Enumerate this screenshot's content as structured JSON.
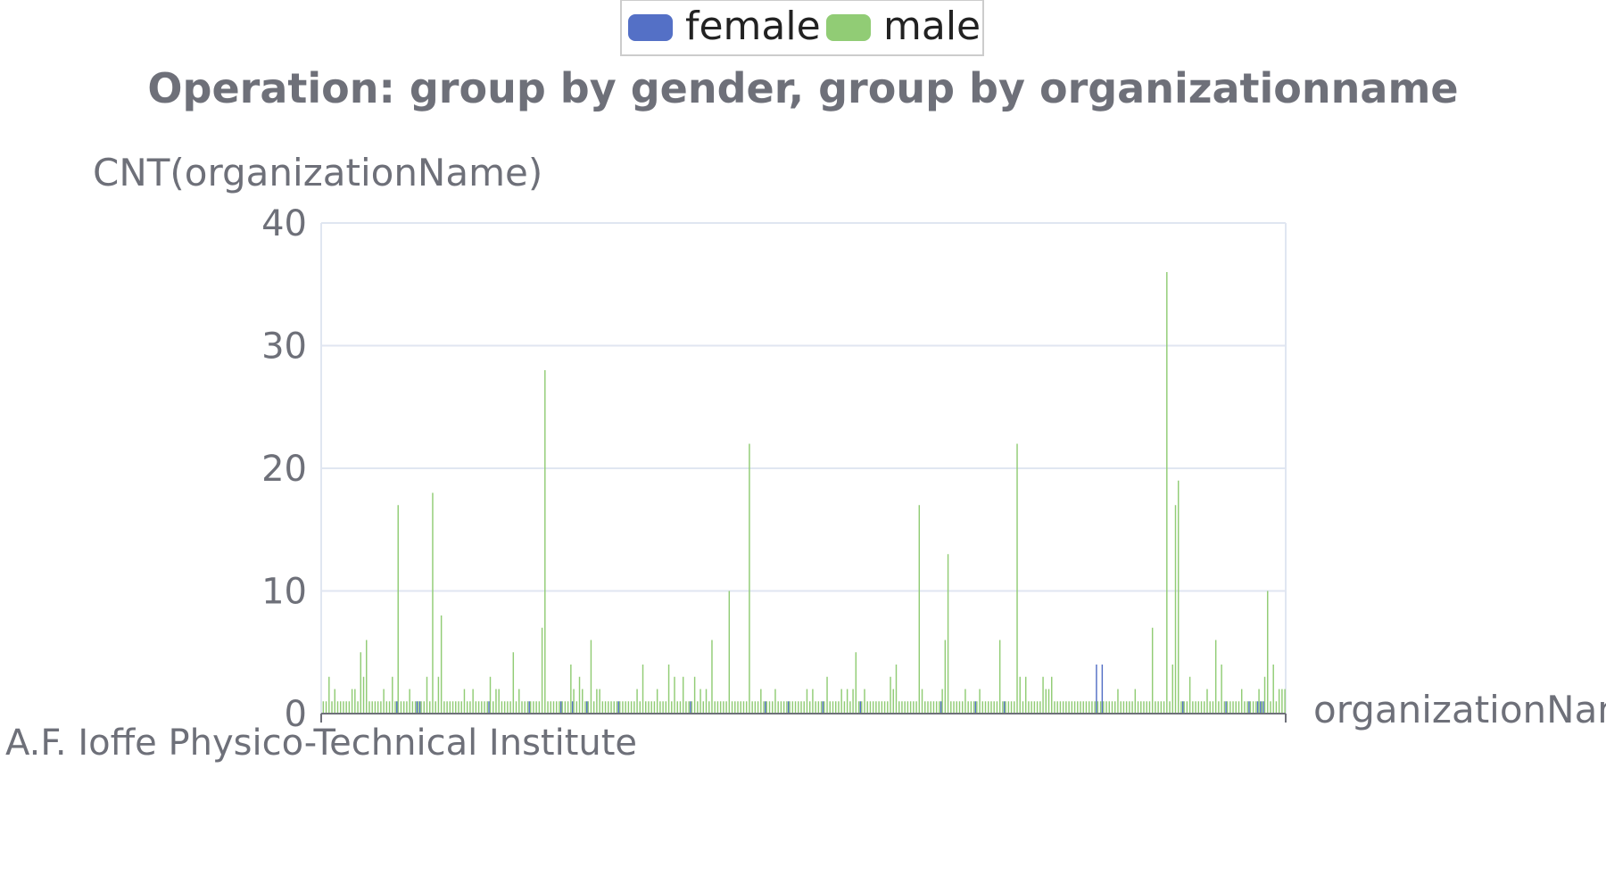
{
  "chart_data": {
    "type": "bar",
    "title": "Operation: group by gender, group by organizationname",
    "ylabel": "CNT(organizationName)",
    "xlabel": "organizationName",
    "ylim": [
      0,
      40
    ],
    "yticks": [
      "0",
      "10",
      "20",
      "30",
      "40"
    ],
    "x_tick_labels": [
      "A.F. Ioffe Physico-Technical Institute"
    ],
    "grid": true,
    "legend_position": "top-center",
    "series": [
      {
        "name": "female",
        "color": "#5470c6",
        "values": [
          0,
          0,
          0,
          0,
          0,
          0,
          0,
          0,
          0,
          0,
          0,
          0,
          0,
          0,
          0,
          0,
          0,
          0,
          0,
          0,
          0,
          0,
          0,
          0,
          0,
          0,
          1,
          0,
          0,
          0,
          0,
          0,
          0,
          1,
          1,
          0,
          0,
          0,
          0,
          0,
          0,
          0,
          0,
          0,
          0,
          0,
          0,
          0,
          0,
          0,
          0,
          0,
          0,
          0,
          0,
          0,
          0,
          0,
          1,
          0,
          0,
          0,
          0,
          0,
          0,
          0,
          0,
          0,
          0,
          0,
          0,
          0,
          1,
          0,
          0,
          0,
          0,
          0,
          0,
          0,
          0,
          0,
          0,
          1,
          0,
          0,
          0,
          1,
          0,
          0,
          0,
          0,
          1,
          0,
          0,
          0,
          0,
          0,
          0,
          0,
          0,
          0,
          0,
          1,
          0,
          0,
          0,
          0,
          0,
          0,
          0,
          0,
          0,
          0,
          0,
          0,
          0,
          0,
          0,
          0,
          0,
          0,
          0,
          0,
          0,
          0,
          0,
          0,
          1,
          0,
          0,
          0,
          0,
          0,
          0,
          0,
          0,
          0,
          0,
          0,
          0,
          0,
          0,
          0,
          0,
          0,
          0,
          0,
          0,
          0,
          0,
          0,
          0,
          0,
          1,
          0,
          0,
          0,
          0,
          0,
          0,
          0,
          1,
          0,
          0,
          0,
          0,
          0,
          0,
          0,
          0,
          0,
          0,
          0,
          1,
          0,
          0,
          0,
          0,
          0,
          0,
          0,
          0,
          0,
          0,
          0,
          0,
          1,
          0,
          0,
          0,
          0,
          0,
          0,
          0,
          0,
          0,
          0,
          0,
          0,
          0,
          0,
          0,
          0,
          0,
          0,
          0,
          0,
          0,
          0,
          0,
          0,
          0,
          0,
          0,
          1,
          0,
          0,
          0,
          0,
          0,
          0,
          0,
          0,
          0,
          0,
          0,
          1,
          0,
          0,
          0,
          0,
          0,
          0,
          0,
          0,
          0,
          1,
          0,
          0,
          0,
          0,
          0,
          0,
          0,
          0,
          0,
          0,
          0,
          0,
          0,
          0,
          0,
          0,
          0,
          0,
          0,
          0,
          0,
          0,
          0,
          0,
          0,
          0,
          0,
          0,
          0,
          0,
          0,
          4,
          0,
          4,
          0,
          0,
          0,
          0,
          0,
          0,
          0,
          0,
          0,
          0,
          0,
          0,
          0,
          0,
          0,
          0,
          0,
          0,
          0,
          0,
          0,
          0,
          0,
          0,
          0,
          0,
          0,
          1,
          0,
          0,
          0,
          0,
          0,
          0,
          0,
          0,
          0,
          0,
          0,
          0,
          0,
          0,
          1,
          0,
          0,
          0,
          0,
          0,
          0,
          0,
          1,
          0,
          0,
          1,
          1,
          1,
          0,
          0,
          0,
          0,
          0,
          0,
          0
        ]
      },
      {
        "name": "male",
        "color": "#91cc75",
        "values": [
          1,
          1,
          3,
          1,
          2,
          1,
          1,
          1,
          1,
          1,
          2,
          2,
          1,
          5,
          3,
          6,
          1,
          1,
          1,
          1,
          1,
          2,
          1,
          1,
          3,
          1,
          17,
          1,
          1,
          1,
          2,
          1,
          1,
          1,
          1,
          1,
          3,
          1,
          18,
          1,
          3,
          8,
          1,
          1,
          1,
          1,
          1,
          1,
          1,
          2,
          1,
          1,
          2,
          1,
          1,
          1,
          1,
          1,
          3,
          1,
          2,
          2,
          1,
          1,
          1,
          1,
          5,
          1,
          2,
          1,
          1,
          1,
          1,
          1,
          1,
          1,
          7,
          28,
          1,
          1,
          1,
          1,
          1,
          1,
          1,
          1,
          4,
          2,
          1,
          3,
          2,
          1,
          1,
          6,
          1,
          2,
          2,
          1,
          1,
          1,
          1,
          1,
          1,
          1,
          1,
          1,
          1,
          1,
          1,
          2,
          1,
          4,
          1,
          1,
          1,
          1,
          2,
          1,
          1,
          1,
          4,
          1,
          3,
          1,
          1,
          3,
          1,
          1,
          1,
          3,
          1,
          2,
          1,
          2,
          1,
          6,
          1,
          1,
          1,
          1,
          1,
          10,
          1,
          1,
          1,
          1,
          1,
          1,
          22,
          1,
          1,
          1,
          2,
          1,
          1,
          1,
          1,
          2,
          1,
          1,
          1,
          1,
          1,
          1,
          1,
          1,
          1,
          1,
          2,
          1,
          2,
          1,
          1,
          1,
          1,
          3,
          1,
          1,
          1,
          1,
          2,
          1,
          2,
          1,
          2,
          5,
          1,
          1,
          2,
          1,
          1,
          1,
          1,
          1,
          1,
          1,
          1,
          3,
          2,
          4,
          1,
          1,
          1,
          1,
          1,
          1,
          1,
          17,
          2,
          1,
          1,
          1,
          1,
          1,
          1,
          2,
          6,
          13,
          1,
          1,
          1,
          1,
          1,
          2,
          1,
          1,
          1,
          1,
          2,
          1,
          1,
          1,
          1,
          1,
          1,
          6,
          1,
          1,
          1,
          1,
          1,
          22,
          3,
          1,
          3,
          1,
          1,
          1,
          1,
          1,
          3,
          2,
          2,
          3,
          1,
          1,
          1,
          1,
          1,
          1,
          1,
          1,
          1,
          1,
          1,
          1,
          1,
          1,
          1,
          1,
          1,
          1,
          1,
          1,
          1,
          1,
          2,
          1,
          1,
          1,
          1,
          1,
          2,
          1,
          1,
          1,
          1,
          1,
          7,
          1,
          1,
          1,
          1,
          36,
          1,
          4,
          17,
          19,
          1,
          1,
          1,
          3,
          1,
          1,
          1,
          1,
          1,
          2,
          1,
          1,
          6,
          1,
          4,
          1,
          1,
          1,
          1,
          1,
          1,
          2,
          1,
          1,
          1,
          1,
          1,
          2,
          1,
          3,
          10,
          1,
          4,
          1,
          2,
          2,
          2,
          1,
          1,
          1,
          5,
          2,
          3,
          1,
          1,
          1,
          1,
          4,
          1,
          1,
          3,
          3,
          1,
          1,
          5,
          2,
          1,
          1,
          2,
          3,
          2,
          1,
          1,
          1,
          5,
          1,
          2,
          1,
          1,
          1,
          1,
          8,
          1
        ]
      }
    ]
  }
}
